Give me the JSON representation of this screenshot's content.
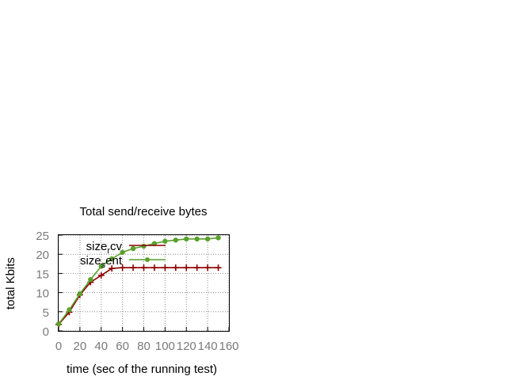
{
  "chart_data": {
    "type": "line",
    "title": "Total send/receive bytes",
    "xlabel": "time (sec of the running test)",
    "ylabel": "total Kbits",
    "xlim": [
      0,
      160
    ],
    "ylim": [
      0,
      25
    ],
    "x_ticks": [
      "0",
      "20",
      "40",
      "60",
      "80",
      "100",
      "120",
      "140",
      "160"
    ],
    "y_ticks": [
      "0",
      "5",
      "10",
      "15",
      "20",
      "25"
    ],
    "grid": true,
    "legend_position": "top-left",
    "legend_labels": [
      {
        "base": "size",
        "sub": "r",
        "rest": "cv"
      },
      {
        "base": "size",
        "sub": "s",
        "rest": "ent"
      }
    ],
    "series": [
      {
        "color": "#8b0000",
        "marker": "plus",
        "x": [
          0,
          10,
          20,
          30,
          40,
          50,
          60,
          70,
          80,
          90,
          100,
          110,
          120,
          130,
          140,
          150
        ],
        "values": [
          1.7,
          4.9,
          9.4,
          12.7,
          14.5,
          16.3,
          16.5,
          16.5,
          16.5,
          16.5,
          16.5,
          16.5,
          16.5,
          16.5,
          16.5,
          16.5
        ]
      },
      {
        "color": "#5aa02c",
        "marker": "dot",
        "x": [
          0,
          10,
          20,
          30,
          40,
          50,
          60,
          70,
          80,
          90,
          100,
          110,
          120,
          130,
          140,
          150
        ],
        "values": [
          1.8,
          5.5,
          9.7,
          13.4,
          16.9,
          18.8,
          20.5,
          21.5,
          22.1,
          22.8,
          23.4,
          23.7,
          24.0,
          24.0,
          24.0,
          24.3
        ]
      }
    ]
  }
}
